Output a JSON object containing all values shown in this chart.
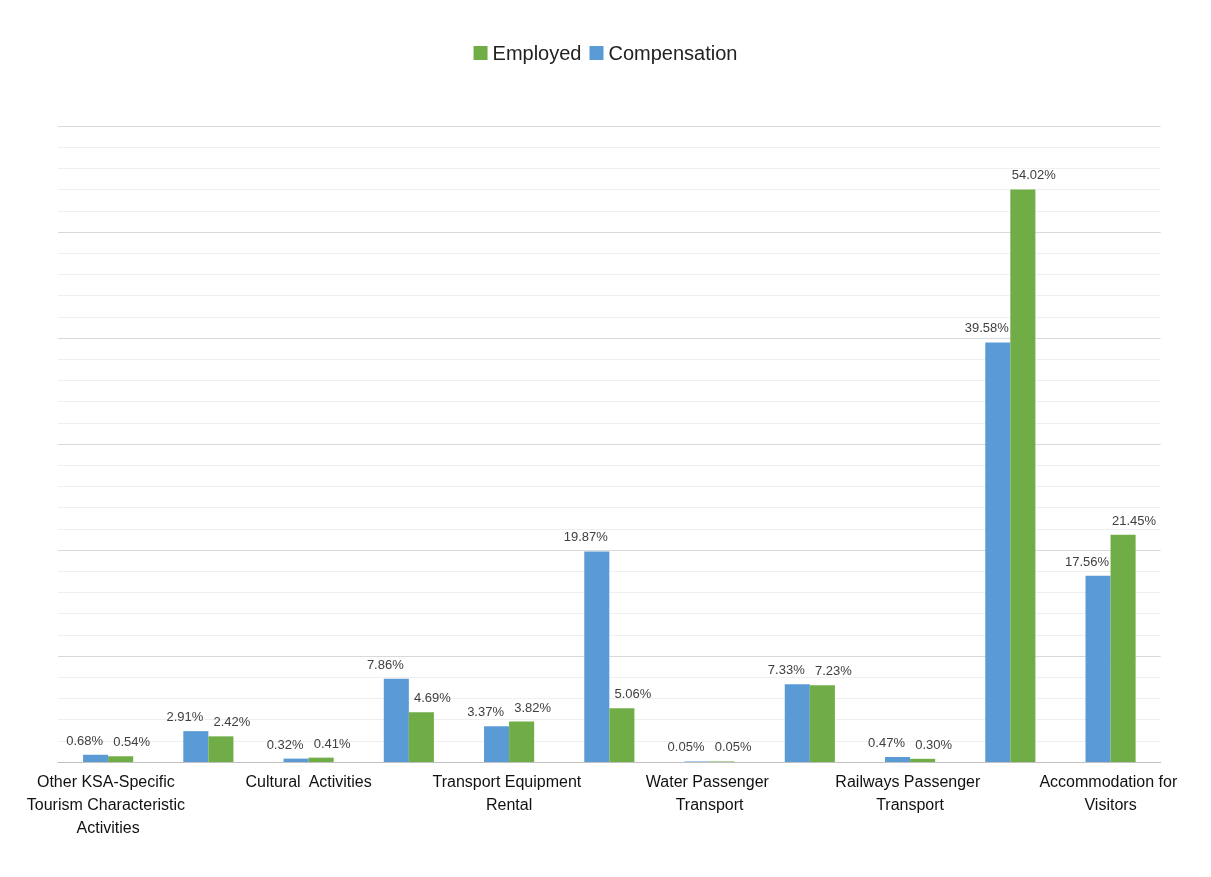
{
  "chart_data": {
    "type": "bar",
    "categories": [
      "Other KSA-Specific Tourism Characteristic Activities",
      null,
      "Cultural  Activities",
      null,
      "Transport Equipment Rental",
      null,
      "Water Passenger Transport",
      null,
      "Railways Passenger Transport",
      null,
      "Accommodation for Visitors"
    ],
    "series": [
      {
        "name": "Compensation",
        "color": "#5b9bd5",
        "values": [
          0.68,
          2.91,
          0.32,
          7.86,
          3.37,
          19.87,
          0.05,
          7.33,
          0.47,
          39.58,
          17.56
        ],
        "value_labels": [
          "0.68%",
          "2.91%",
          "0.32%",
          "7.86%",
          "3.37%",
          "19.87%",
          "0.05%",
          "7.33%",
          "0.47%",
          "39.58%",
          "17.56%"
        ]
      },
      {
        "name": "Employed",
        "color": "#70ad47",
        "values": [
          0.54,
          2.42,
          0.41,
          4.69,
          3.82,
          5.06,
          0.05,
          7.23,
          0.3,
          54.02,
          21.45
        ],
        "value_labels": [
          "0.54%",
          "2.42%",
          "0.41%",
          "4.69%",
          "3.82%",
          "5.06%",
          "0.05%",
          "7.23%",
          "0.30%",
          "54.02%",
          "21.45%"
        ]
      }
    ],
    "ylim": [
      0,
      60
    ],
    "yticks": [
      {
        "value": 0,
        "label": null
      },
      {
        "value": 10,
        "label": null
      },
      {
        "value": 20,
        "label": null
      },
      {
        "value": 30,
        "label": null
      },
      {
        "value": 40,
        "label": null
      },
      {
        "value": 50,
        "label": null
      },
      {
        "value": 60,
        "label": null
      }
    ],
    "grid": true,
    "legend": "top",
    "tick_labels": "x"
  }
}
